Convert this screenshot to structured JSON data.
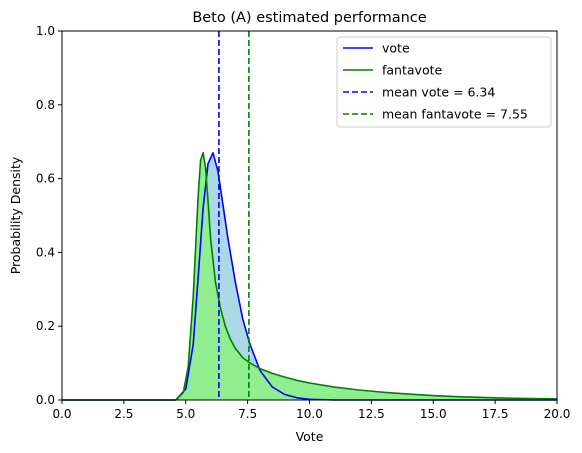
{
  "chart_data": {
    "type": "area",
    "title": "Beto (A) estimated performance",
    "xlabel": "Vote",
    "ylabel": "Probability Density",
    "xlim": [
      0,
      20
    ],
    "ylim": [
      0,
      1.0
    ],
    "xticks": [
      "0.0",
      "2.5",
      "5.0",
      "7.5",
      "10.0",
      "12.5",
      "15.0",
      "17.5",
      "20.0"
    ],
    "yticks": [
      "0.0",
      "0.2",
      "0.4",
      "0.6",
      "0.8",
      "1.0"
    ],
    "grid": false,
    "legend_position": "top-right",
    "series": [
      {
        "name": "vote",
        "color": "#0000ff",
        "fill": "#add8e6",
        "x": [
          0,
          4.6,
          5.0,
          5.3,
          5.5,
          5.7,
          5.9,
          6.1,
          6.3,
          6.5,
          6.7,
          7.0,
          7.3,
          7.6,
          8.0,
          8.5,
          9.0,
          9.5,
          10.0,
          11.0,
          20.0
        ],
        "y": [
          0,
          0.0,
          0.03,
          0.15,
          0.33,
          0.52,
          0.64,
          0.67,
          0.62,
          0.53,
          0.44,
          0.32,
          0.22,
          0.15,
          0.08,
          0.035,
          0.015,
          0.006,
          0.002,
          0.0,
          0.0
        ]
      },
      {
        "name": "fantavote",
        "color": "#008000",
        "fill": "#90ee90",
        "x": [
          0,
          4.6,
          4.9,
          5.1,
          5.3,
          5.5,
          5.6,
          5.7,
          5.8,
          5.9,
          6.0,
          6.2,
          6.4,
          6.6,
          6.8,
          7.0,
          7.3,
          7.6,
          8.0,
          8.5,
          9.0,
          9.5,
          10.0,
          11.0,
          12.0,
          13.0,
          14.0,
          15.0,
          16.0,
          17.0,
          18.0,
          19.0,
          20.0
        ],
        "y": [
          0,
          0.0,
          0.02,
          0.09,
          0.28,
          0.55,
          0.65,
          0.67,
          0.63,
          0.54,
          0.44,
          0.32,
          0.25,
          0.2,
          0.165,
          0.14,
          0.115,
          0.1,
          0.085,
          0.072,
          0.062,
          0.053,
          0.046,
          0.035,
          0.027,
          0.021,
          0.016,
          0.012,
          0.009,
          0.007,
          0.005,
          0.004,
          0.003
        ]
      }
    ],
    "vlines": [
      {
        "name": "mean vote = 6.34",
        "x": 6.34,
        "color": "#0000ff"
      },
      {
        "name": "mean fantavote = 7.55",
        "x": 7.55,
        "color": "#008000"
      }
    ]
  }
}
